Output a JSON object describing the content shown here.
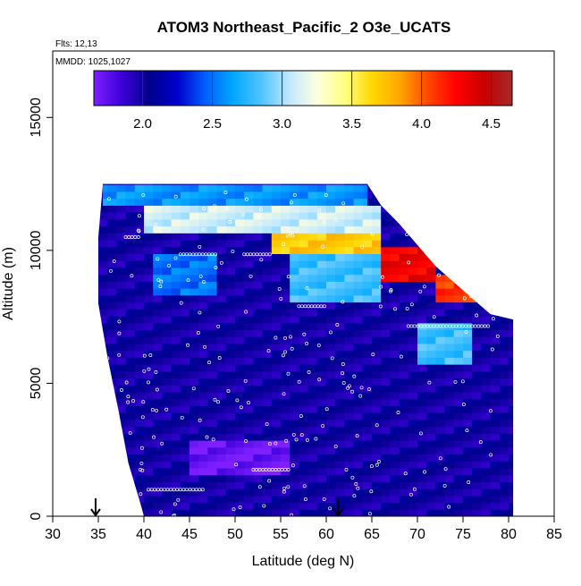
{
  "chart_data": {
    "type": "heatmap",
    "title": "ATOM3 Northeast_Pacific_2 O3e_UCATS",
    "annotations": [
      "Flts: 12,13",
      "MMDD: 1025,1027"
    ],
    "xlabel": "Latitude (deg N)",
    "ylabel": "Altitude (m)",
    "xlim": [
      30,
      85
    ],
    "ylim": [
      0,
      17500
    ],
    "xticks": [
      30,
      35,
      40,
      45,
      50,
      55,
      60,
      65,
      70,
      75,
      80,
      85
    ],
    "yticks": [
      0,
      5000,
      10000,
      15000
    ],
    "colorbar": {
      "range": [
        1.65,
        4.65
      ],
      "ticks": [
        2.0,
        2.5,
        3.0,
        3.5,
        4.0,
        4.5
      ],
      "tick_labels": [
        "2.0",
        "2.5",
        "3.0",
        "3.5",
        "4.0",
        "4.5"
      ],
      "palette": [
        "#7f1fff",
        "#3b00d8",
        "#00008b",
        "#0000cd",
        "#0060ff",
        "#00a8ff",
        "#4fc3ff",
        "#bfe8ff",
        "#ffffe0",
        "#ffff80",
        "#ffd700",
        "#ffa500",
        "#ff4500",
        "#ff0000",
        "#c80000",
        "#a52a2a"
      ]
    },
    "arrow_latitudes": [
      34.7,
      61.3
    ],
    "data_extent": {
      "top_altitude_by_latitude": [
        [
          35.5,
          12500
        ],
        [
          64.5,
          12500
        ],
        [
          66,
          11700
        ],
        [
          68,
          11000
        ],
        [
          70,
          10200
        ],
        [
          72,
          9400
        ],
        [
          74,
          8800
        ],
        [
          76,
          8200
        ],
        [
          78,
          7600
        ],
        [
          80.5,
          7400
        ]
      ],
      "bottom_altitude": 0,
      "left_edge_by_altitude": [
        [
          12500,
          35.5
        ],
        [
          10500,
          35
        ],
        [
          8000,
          35
        ],
        [
          6000,
          36
        ],
        [
          4000,
          37.2
        ],
        [
          2000,
          38.3
        ],
        [
          500,
          39.6
        ],
        [
          0,
          40
        ]
      ]
    },
    "observed_values": [
      {
        "lat_range": [
          35.5,
          64.5
        ],
        "alt_range": [
          11800,
          12500
        ],
        "value": 2.6
      },
      {
        "lat_range": [
          40,
          66
        ],
        "alt_range": [
          10600,
          11800
        ],
        "value": 3.1
      },
      {
        "lat_range": [
          54,
          66
        ],
        "alt_range": [
          9800,
          10800
        ],
        "value": 3.7
      },
      {
        "lat_range": [
          66,
          72
        ],
        "alt_range": [
          8800,
          10200
        ],
        "value": 4.3
      },
      {
        "lat_range": [
          72,
          78
        ],
        "alt_range": [
          8000,
          9200
        ],
        "value": 4.1
      },
      {
        "lat_range": [
          56,
          66
        ],
        "alt_range": [
          8000,
          9800
        ],
        "value": 2.8
      },
      {
        "lat_range": [
          41,
          48
        ],
        "alt_range": [
          8200,
          9800
        ],
        "value": 2.5
      },
      {
        "lat_range": [
          70,
          76
        ],
        "alt_range": [
          5800,
          7200
        ],
        "value": 2.8
      },
      {
        "lat_range": [
          45,
          56
        ],
        "alt_range": [
          1600,
          2800
        ],
        "value": 1.7
      },
      {
        "lat_range": [
          35,
          80
        ],
        "alt_range": [
          0,
          7000
        ],
        "value": 2.0
      }
    ]
  }
}
